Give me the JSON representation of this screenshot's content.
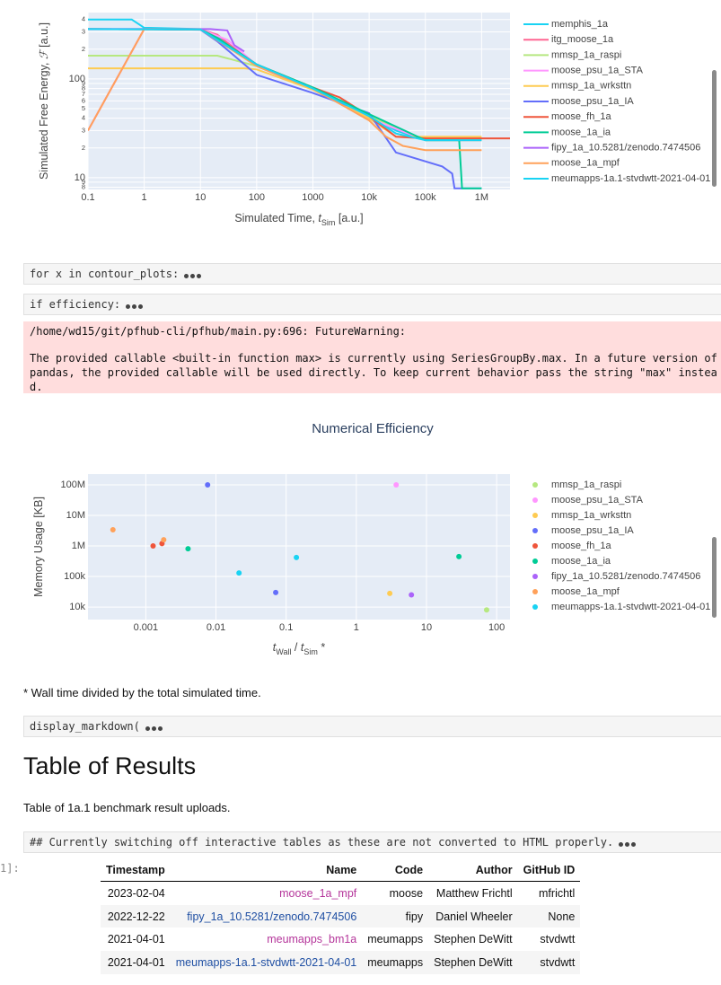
{
  "chart_data": [
    {
      "type": "line",
      "x_log": true,
      "y_log": true,
      "grid": true,
      "xlabel": [
        {
          "text": "Simulated Time, "
        },
        {
          "text": "t",
          "italic": true
        },
        {
          "text": "Sim",
          "sub": true
        },
        {
          "text": " [a.u.]"
        }
      ],
      "ylabel": [
        {
          "text": "Simulated Free Energy, "
        },
        {
          "text": "ℱ",
          "italic": true
        },
        {
          "text": " [a.u.]"
        }
      ],
      "xlim": [
        0.1,
        3200000
      ],
      "ylim": [
        7.6,
        470
      ],
      "xticks": [
        0.1,
        1,
        10,
        100,
        1000,
        {
          "value": 10000,
          "label": "10k"
        },
        {
          "value": 100000,
          "label": "100k"
        },
        {
          "value": 1000000,
          "label": "1M"
        }
      ],
      "yticks": [
        8,
        9,
        10,
        {
          "value": 20,
          "label": "2"
        },
        {
          "value": 30,
          "label": "3"
        },
        {
          "value": 40,
          "label": "4"
        },
        {
          "value": 50,
          "label": "5"
        },
        {
          "value": 60,
          "label": "6"
        },
        {
          "value": 70,
          "label": "7"
        },
        {
          "value": 80,
          "label": "8"
        },
        {
          "value": 90,
          "label": "9"
        },
        100,
        {
          "value": 200,
          "label": "2"
        },
        {
          "value": 300,
          "label": "3"
        },
        {
          "value": 400,
          "label": "4"
        }
      ],
      "series": [
        {
          "name": "memphis_1a",
          "color": "#19d3f3",
          "x": [
            0.1,
            0.6,
            1,
            10,
            20,
            100,
            1000,
            10000,
            30000,
            100000,
            1000000
          ],
          "values": [
            400,
            400,
            330,
            320,
            270,
            140,
            80,
            42,
            30,
            24,
            24
          ]
        },
        {
          "name": "itg_moose_1a",
          "color": "#FF6692",
          "x": [
            0.1,
            1,
            10,
            20,
            100,
            1000,
            10000,
            100000,
            1000000
          ],
          "values": [
            30,
            320,
            318,
            280,
            135,
            78,
            40,
            24,
            24
          ]
        },
        {
          "name": "mmsp_1a_raspi",
          "color": "#B6E880",
          "x": [
            0.1,
            20,
            100,
            1000,
            10000,
            100000,
            1000000
          ],
          "values": [
            172,
            172,
            135,
            80,
            42,
            24,
            24
          ]
        },
        {
          "name": "moose_psu_1a_STA",
          "color": "#FF97FF",
          "x": [
            0.1,
            1,
            10,
            30,
            100,
            1000,
            10000,
            100000
          ],
          "values": [
            30,
            320,
            318,
            250,
            138,
            80,
            40,
            24
          ]
        },
        {
          "name": "mmsp_1a_wrksttn",
          "color": "#FECB52",
          "x": [
            0.1,
            60,
            100,
            1000,
            10000,
            30000,
            1000000
          ],
          "values": [
            128,
            128,
            125,
            78,
            40,
            26,
            26
          ]
        },
        {
          "name": "moose_psu_1a_IA",
          "color": "#636efa",
          "x": [
            0.1,
            1,
            10,
            20,
            100,
            1000,
            10000,
            30000,
            200000,
            300000,
            330000,
            1000000
          ],
          "values": [
            320,
            320,
            315,
            240,
            110,
            72,
            45,
            18,
            13,
            11,
            7.8,
            7.8
          ]
        },
        {
          "name": "moose_fh_1a",
          "color": "#EF553B",
          "x": [
            0.1,
            10,
            20,
            100,
            1000,
            3000,
            10000,
            30000,
            100000,
            3200000
          ],
          "values": [
            320,
            318,
            260,
            140,
            82,
            65,
            42,
            26,
            25,
            25
          ]
        },
        {
          "name": "moose_1a_ia",
          "color": "#00cc96",
          "x": [
            0.1,
            10,
            20,
            100,
            1000,
            10000,
            100000,
            400000,
            450000,
            1000000
          ],
          "values": [
            320,
            318,
            260,
            140,
            82,
            44,
            24,
            24,
            7.8,
            7.8
          ]
        },
        {
          "name": "fipy_1a_10.5281/zenodo.7474506",
          "color": "#ab63fa",
          "x": [
            0.1,
            15,
            30,
            40,
            60
          ],
          "values": [
            320,
            320,
            310,
            220,
            190
          ]
        },
        {
          "name": "moose_1a_mpf",
          "color": "#FFA15A",
          "x": [
            0.1,
            1,
            10,
            100,
            1000,
            10000,
            20000,
            40000,
            100000,
            1000000
          ],
          "values": [
            30,
            320,
            318,
            135,
            80,
            38,
            26,
            21,
            19,
            19
          ]
        },
        {
          "name": "meumapps-1a.1-stvdwtt-2021-04-01",
          "color": "#19d3f3",
          "x": [
            0.1,
            10,
            100,
            1000,
            10000,
            30000,
            100000,
            1000000
          ],
          "values": [
            320,
            318,
            140,
            80,
            42,
            28,
            24,
            24
          ]
        }
      ]
    },
    {
      "type": "scatter",
      "title": "Numerical Efficiency",
      "x_log": true,
      "y_log": true,
      "grid": true,
      "xlabel": [
        {
          "text": "t",
          "italic": true
        },
        {
          "text": "Wall",
          "sub": true
        },
        {
          "text": " / "
        },
        {
          "text": "t",
          "italic": true
        },
        {
          "text": "Sim",
          "sub": true
        },
        {
          "text": " *"
        }
      ],
      "ylabel": [
        {
          "text": "Memory Usage [KB]"
        }
      ],
      "xlim": [
        0.00015,
        155
      ],
      "ylim": [
        3900,
        225000000
      ],
      "xticks": [
        0.001,
        0.01,
        0.1,
        1,
        10,
        100
      ],
      "yticks": [
        {
          "value": 10000,
          "label": "10k"
        },
        {
          "value": 100000,
          "label": "100k"
        },
        {
          "value": 1000000,
          "label": "1M"
        },
        {
          "value": 10000000,
          "label": "10M"
        },
        {
          "value": 100000000,
          "label": "100M"
        }
      ],
      "series": [
        {
          "name": "mmsp_1a_raspi",
          "color": "#B6E880",
          "x": [
            72
          ],
          "values": [
            8100
          ]
        },
        {
          "name": "moose_psu_1a_STA",
          "color": "#FF97FF",
          "x": [
            3.7
          ],
          "values": [
            100000000
          ]
        },
        {
          "name": "mmsp_1a_wrksttn",
          "color": "#FECB52",
          "x": [
            3.0
          ],
          "values": [
            28000
          ]
        },
        {
          "name": "moose_psu_1a_IA",
          "color": "#636efa",
          "x": [
            0.0076,
            0.071
          ],
          "values": [
            100000000,
            30000
          ]
        },
        {
          "name": "moose_fh_1a",
          "color": "#EF553B",
          "x": [
            0.00127,
            0.0017
          ],
          "values": [
            1000000,
            1200000
          ]
        },
        {
          "name": "moose_1a_ia",
          "color": "#00cc96",
          "x": [
            0.004,
            29
          ],
          "values": [
            810000,
            450000
          ]
        },
        {
          "name": "fipy_1a_10.5281/zenodo.7474506",
          "color": "#ab63fa",
          "x": [
            6.1
          ],
          "values": [
            25000
          ]
        },
        {
          "name": "moose_1a_mpf",
          "color": "#FFA15A",
          "x": [
            0.00034,
            0.0018
          ],
          "values": [
            3400000,
            1600000
          ]
        },
        {
          "name": "meumapps-1a.1-stvdwtt-2021-04-01",
          "color": "#19d3f3",
          "x": [
            0.0213,
            0.14
          ],
          "values": [
            130000,
            420000
          ]
        }
      ]
    }
  ],
  "cells": {
    "code_1": "for x in contour_plots:",
    "code_2": "if efficiency:",
    "stderr": [
      "/home/wd15/git/pfhub-cli/pfhub/main.py:696: FutureWarning:",
      "The provided callable <built-in function max> is currently using SeriesGroupBy.max. In a future version of pandas, the provided callable will be used directly. To keep current behavior pass the string \"max\" instead."
    ],
    "note": "* Wall time divided by the total simulated time.",
    "code_3": "display_markdown(",
    "heading": "Table of Results",
    "caption": "Table of 1a.1 benchmark result uploads.",
    "code_4": "## Currently switching off interactive tables as these are not converted to HTML properly.",
    "prompt": "1]:"
  },
  "table": {
    "columns": [
      "Timestamp",
      "Name",
      "Code",
      "Author",
      "GitHub ID"
    ],
    "rows": [
      [
        "2023-02-04",
        "moose_1a_mpf",
        "moose",
        "Matthew Frichtl",
        "mfrichtl"
      ],
      [
        "2022-12-22",
        "fipy_1a_10.5281/zenodo.7474506",
        "fipy",
        "Daniel Wheeler",
        "None"
      ],
      [
        "2021-04-01",
        "meumapps_bm1a",
        "meumapps",
        "Stephen DeWitt",
        "stvdwtt"
      ],
      [
        "2021-04-01",
        "meumapps-1a.1-stvdwtt-2021-04-01",
        "meumapps",
        "Stephen DeWitt",
        "stvdwtt"
      ]
    ],
    "name_colors": [
      "#b5369b",
      "#1f4fa3",
      "#b5369b",
      "#1f4fa3"
    ]
  }
}
